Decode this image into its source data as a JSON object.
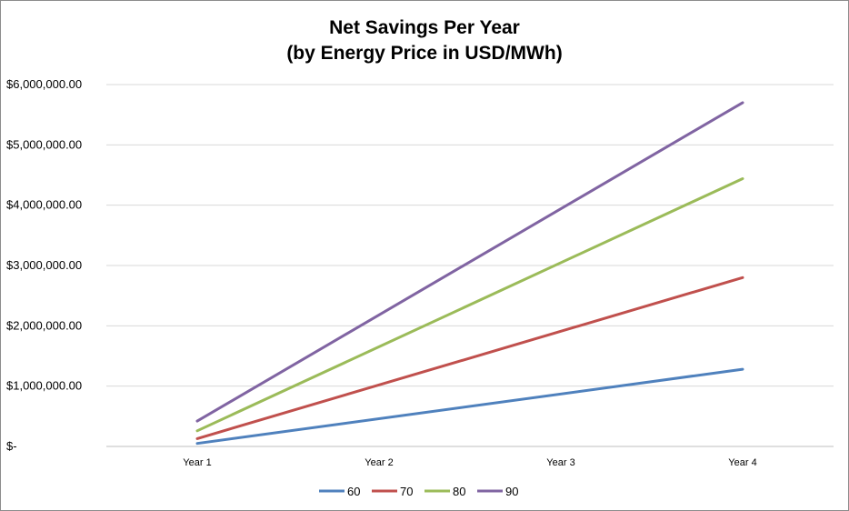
{
  "chart_data": {
    "type": "line",
    "title_lines": [
      "Net Savings Per Year",
      "(by Energy Price in USD/MWh)"
    ],
    "categories": [
      "Year 1",
      "Year 2",
      "Year 3",
      "Year 4"
    ],
    "ylim": [
      0,
      6000000
    ],
    "y_ticks": [
      {
        "value": 0,
        "label": "$-"
      },
      {
        "value": 1000000,
        "label": "$1,000,000.00"
      },
      {
        "value": 2000000,
        "label": "$2,000,000.00"
      },
      {
        "value": 3000000,
        "label": "$3,000,000.00"
      },
      {
        "value": 4000000,
        "label": "$4,000,000.00"
      },
      {
        "value": 5000000,
        "label": "$5,000,000.00"
      },
      {
        "value": 6000000,
        "label": "$6,000,000.00"
      }
    ],
    "grid": true,
    "legend_position": "bottom",
    "series": [
      {
        "name": "60",
        "color": "#4f81bd",
        "values": [
          50000,
          null,
          null,
          1280000
        ]
      },
      {
        "name": "70",
        "color": "#c0504d",
        "values": [
          130000,
          null,
          null,
          2800000
        ]
      },
      {
        "name": "80",
        "color": "#9bbb59",
        "values": [
          260000,
          null,
          null,
          4440000
        ]
      },
      {
        "name": "90",
        "color": "#8064a2",
        "values": [
          420000,
          null,
          null,
          5700000
        ]
      }
    ]
  }
}
